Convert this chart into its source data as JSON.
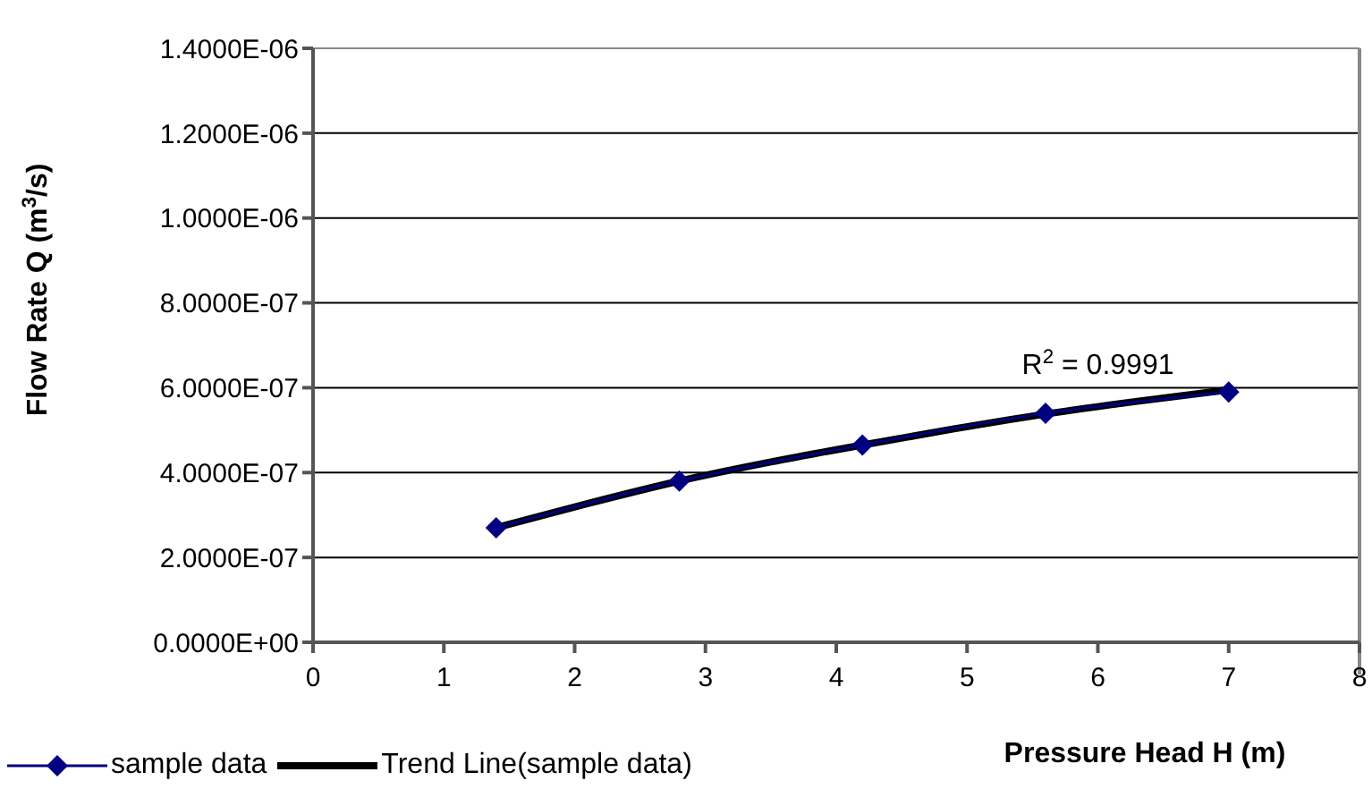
{
  "chart_data": {
    "type": "line",
    "xlabel": "Pressure Head H (m)",
    "ylabel": "Flow Rate Q (m$^{3}$/s)",
    "xlim": [
      0,
      8
    ],
    "xticks": [
      0,
      1,
      2,
      3,
      4,
      5,
      6,
      7,
      8
    ],
    "ylim": [
      0,
      1.4e-06
    ],
    "yticks": [
      {
        "value": 0,
        "label": "0.0000E+00"
      },
      {
        "value": 2e-07,
        "label": "2.0000E-07"
      },
      {
        "value": 4e-07,
        "label": "4.0000E-07"
      },
      {
        "value": 6e-07,
        "label": "6.0000E-07"
      },
      {
        "value": 8e-07,
        "label": "8.0000E-07"
      },
      {
        "value": 1e-06,
        "label": "1.0000E-06"
      },
      {
        "value": 1.2e-06,
        "label": "1.2000E-06"
      },
      {
        "value": 1.4e-06,
        "label": "1.4000E-06"
      }
    ],
    "grid": "y",
    "legend": "bottom left",
    "series": [
      {
        "name": "sample data",
        "color": "#000080",
        "marker": "diamond",
        "x": [
          1.4,
          2.8,
          4.2,
          5.6,
          7.0
        ],
        "values": [
          2.7e-07,
          3.8e-07,
          4.65e-07,
          5.4e-07,
          5.9e-07
        ]
      },
      {
        "name": "Trend Line(sample data)",
        "color": "#000000",
        "marker": "none",
        "x": [
          1.4,
          2.1,
          2.8,
          3.5,
          4.2,
          4.9,
          5.6,
          6.3,
          7.0
        ],
        "values": [
          2.7e-07,
          3.27e-07,
          3.8e-07,
          4.25e-07,
          4.65e-07,
          5.03e-07,
          5.38e-07,
          5.68e-07,
          5.95e-07
        ]
      }
    ],
    "annotations": [
      "R$^{2}$ = 0.9991"
    ]
  }
}
